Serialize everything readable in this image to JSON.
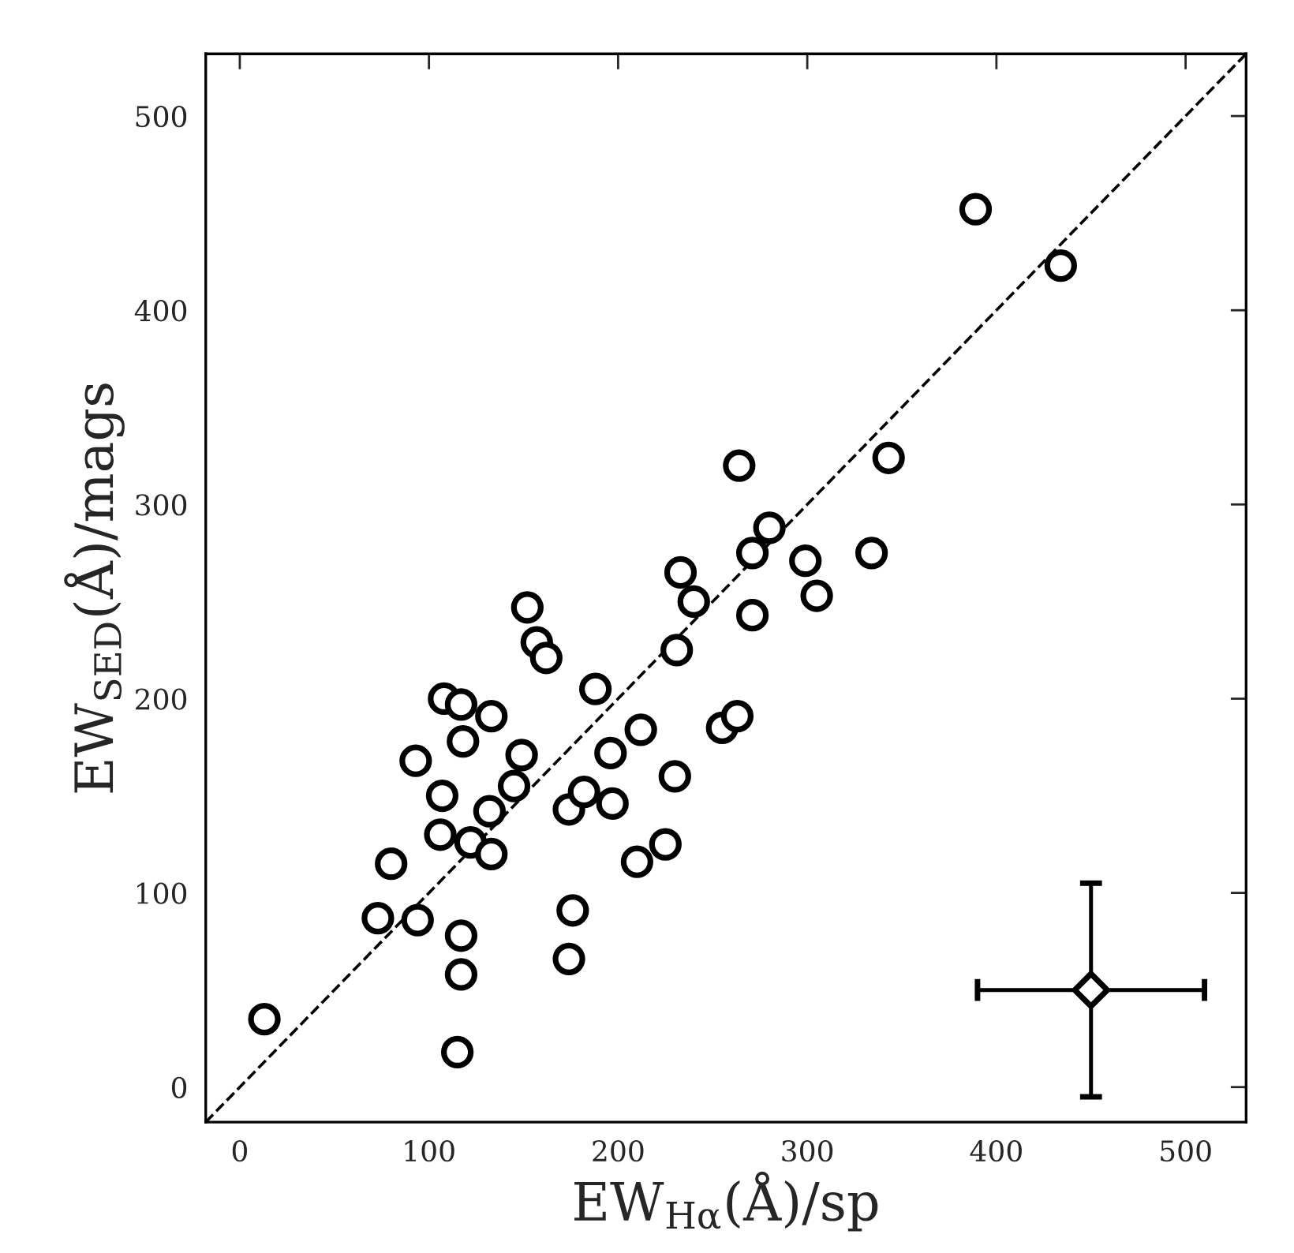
{
  "chart_data": {
    "type": "scatter",
    "xlabel": "EW$_{Hα}$(Å)/sp",
    "ylabel": "EW$_{SED}$(Å)/mags",
    "xlim": [
      -18,
      532
    ],
    "ylim": [
      -18,
      532
    ],
    "xticks": [
      0,
      100,
      200,
      300,
      400,
      500
    ],
    "yticks": [
      0,
      100,
      200,
      300,
      400,
      500
    ],
    "grid": false,
    "series": [
      {
        "color": "#000000",
        "marker": "circle",
        "x": [
          13,
          73,
          94,
          80,
          93,
          107,
          106,
          108,
          117,
          118,
          133,
          122,
          132,
          133,
          145,
          149,
          117,
          117,
          115,
          152,
          157,
          162,
          174,
          176,
          174,
          182,
          188,
          196,
          197,
          212,
          210,
          225,
          230,
          231,
          233,
          240,
          255,
          263,
          264,
          271,
          271,
          280,
          334,
          343,
          299,
          305,
          389,
          434
        ],
        "values": [
          35,
          87,
          86,
          115,
          168,
          150,
          130,
          200,
          197,
          178,
          191,
          126,
          142,
          120,
          155,
          171,
          78,
          58,
          18,
          247,
          229,
          221,
          143,
          91,
          66,
          152,
          205,
          172,
          146,
          184,
          116,
          125,
          160,
          225,
          265,
          250,
          185,
          191,
          320,
          275,
          243,
          288,
          275,
          324,
          271,
          253,
          452,
          423
        ]
      },
      {
        "type": "line",
        "color": "#000000",
        "line_style": "dashed",
        "marker": "none",
        "x": [
          -18,
          532
        ],
        "values": [
          -18,
          532
        ]
      },
      {
        "type": "scatter",
        "color": "#000000",
        "marker": "diamond",
        "x": [
          450
        ],
        "values": [
          50
        ],
        "errors": [
          55
        ],
        "xerrors": [
          60
        ]
      }
    ]
  }
}
